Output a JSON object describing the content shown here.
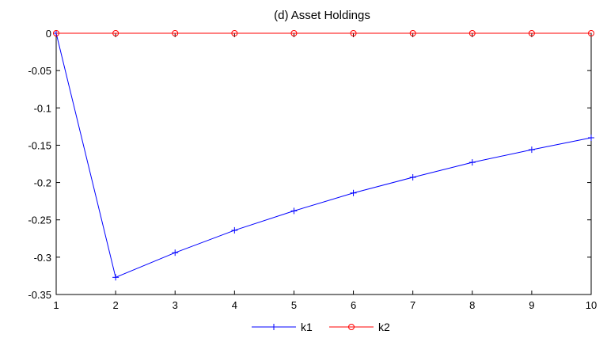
{
  "chart_data": {
    "type": "line",
    "title": "(d) Asset Holdings",
    "xlabel": "",
    "ylabel": "",
    "x": [
      1,
      2,
      3,
      4,
      5,
      6,
      7,
      8,
      9,
      10
    ],
    "xlim": [
      1,
      10
    ],
    "ylim": [
      -0.35,
      0
    ],
    "xticks": [
      "1",
      "2",
      "3",
      "4",
      "5",
      "6",
      "7",
      "8",
      "9",
      "10"
    ],
    "yticks": [
      "0",
      "-0.05",
      "-0.1",
      "-0.15",
      "-0.2",
      "-0.25",
      "-0.3",
      "-0.35"
    ],
    "grid": false,
    "legend_position": "bottom",
    "series": [
      {
        "name": "k1",
        "color": "#0000ff",
        "marker": "plus",
        "values": [
          0,
          -0.327,
          -0.294,
          -0.264,
          -0.238,
          -0.214,
          -0.193,
          -0.173,
          -0.156,
          -0.14
        ]
      },
      {
        "name": "k2",
        "color": "#ff0000",
        "marker": "circle",
        "values": [
          0,
          0,
          0,
          0,
          0,
          0,
          0,
          0,
          0,
          0
        ]
      }
    ]
  }
}
